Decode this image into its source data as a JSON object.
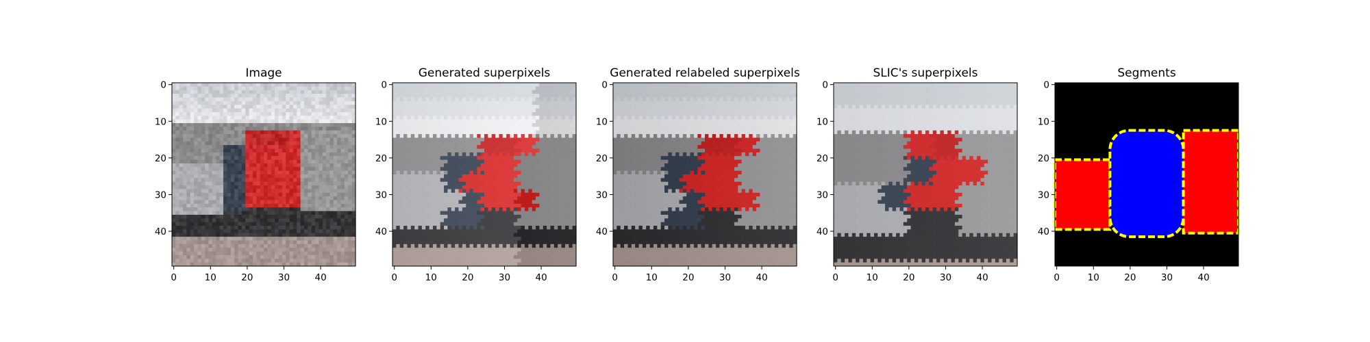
{
  "chart_data": [
    {
      "type": "image",
      "title": "Image",
      "xlim": [
        0,
        49
      ],
      "ylim": [
        0,
        49
      ],
      "xticks": [
        0,
        10,
        20,
        30,
        40
      ],
      "yticks": [
        0,
        10,
        20,
        30,
        40
      ],
      "tick_labels": [
        "0",
        "10",
        "20",
        "30",
        "40"
      ],
      "content": "photo"
    },
    {
      "type": "image",
      "title": "Generated superpixels",
      "xlim": [
        0,
        49
      ],
      "ylim": [
        0,
        49
      ],
      "xticks": [
        0,
        10,
        20,
        30,
        40
      ],
      "yticks": [
        0,
        10,
        20,
        30,
        40
      ],
      "tick_labels": [
        "0",
        "10",
        "20",
        "30",
        "40"
      ],
      "content": "superpixels"
    },
    {
      "type": "image",
      "title": "Generated relabeled superpixels",
      "xlim": [
        0,
        49
      ],
      "ylim": [
        0,
        49
      ],
      "xticks": [
        0,
        10,
        20,
        30,
        40
      ],
      "yticks": [
        0,
        10,
        20,
        30,
        40
      ],
      "tick_labels": [
        "0",
        "10",
        "20",
        "30",
        "40"
      ],
      "content": "superpixels"
    },
    {
      "type": "image",
      "title": "SLIC's superpixels",
      "xlim": [
        0,
        49
      ],
      "ylim": [
        0,
        49
      ],
      "xticks": [
        0,
        10,
        20,
        30,
        40
      ],
      "yticks": [
        0,
        10,
        20,
        30,
        40
      ],
      "tick_labels": [
        "0",
        "10",
        "20",
        "30",
        "40"
      ],
      "content": "slic"
    },
    {
      "type": "image",
      "title": "Segments",
      "xlim": [
        0,
        49
      ],
      "ylim": [
        0,
        49
      ],
      "xticks": [
        0,
        10,
        20,
        30,
        40
      ],
      "yticks": [
        0,
        10,
        20,
        30,
        40
      ],
      "tick_labels": [
        "0",
        "10",
        "20",
        "30",
        "40"
      ],
      "content": "segments",
      "colors": {
        "background": "#000000",
        "left": "#ff0000",
        "center": "#0000ff",
        "right": "#ff0000",
        "boundary": "#ffff00"
      },
      "segment_regions": [
        {
          "label": "left",
          "x": [
            0,
            14
          ],
          "y": [
            21,
            39
          ]
        },
        {
          "label": "center",
          "x": [
            15,
            34
          ],
          "y": [
            13,
            41
          ]
        },
        {
          "label": "right",
          "x": [
            35,
            49
          ],
          "y": [
            13,
            40
          ]
        }
      ]
    }
  ]
}
